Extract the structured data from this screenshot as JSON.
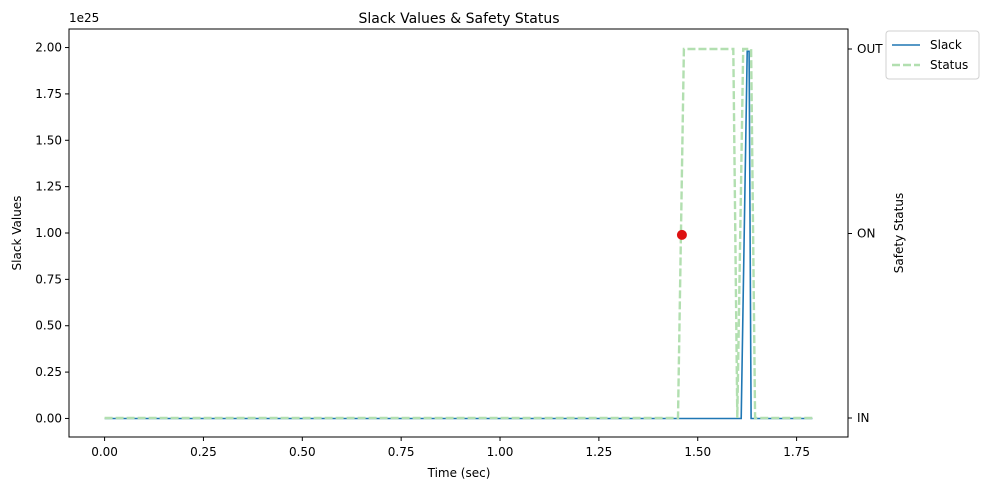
{
  "chart_data": {
    "type": "line",
    "title": "Slack Values & Safety Status",
    "xlabel": "Time (sec)",
    "ylabel": "Slack Values",
    "y2label": "Safety Status",
    "y_offset_text": "1e25",
    "xlim": [
      -0.09,
      1.88
    ],
    "ylim": [
      -0.1,
      2.1
    ],
    "x_ticks": [
      0.0,
      0.25,
      0.5,
      0.75,
      1.0,
      1.25,
      1.5,
      1.75
    ],
    "x_tick_labels": [
      "0.00",
      "0.25",
      "0.50",
      "0.75",
      "1.00",
      "1.25",
      "1.50",
      "1.75"
    ],
    "y_ticks": [
      0.0,
      0.25,
      0.5,
      0.75,
      1.0,
      1.25,
      1.5,
      1.75,
      2.0
    ],
    "y_tick_labels": [
      "0.00",
      "0.25",
      "0.50",
      "0.75",
      "1.00",
      "1.25",
      "1.50",
      "1.75",
      "2.00"
    ],
    "y2_categories": [
      "IN",
      "ON",
      "OUT"
    ],
    "grid": false,
    "legend_position": "outside-top-right",
    "series": [
      {
        "name": "Slack",
        "axis": "left",
        "color": "#1f77b4",
        "style": "solid",
        "x": [
          0.0,
          1.61,
          1.625,
          1.63,
          1.635,
          1.64,
          1.79
        ],
        "y": [
          0.0,
          0.0,
          1.98,
          1.98,
          0.0,
          0.0,
          0.0
        ]
      },
      {
        "name": "Status",
        "axis": "right",
        "color": "#b2dfb0",
        "style": "dashed",
        "x": [
          0.0,
          1.45,
          1.465,
          1.59,
          1.6,
          1.615,
          1.625,
          1.635,
          1.645,
          1.79
        ],
        "y": [
          "IN",
          "IN",
          "OUT",
          "OUT",
          "IN",
          "OUT",
          "OUT",
          "OUT",
          "IN",
          "IN"
        ]
      }
    ],
    "marker": {
      "x": 1.46,
      "y": 0.99,
      "color": "#dd1111"
    }
  }
}
